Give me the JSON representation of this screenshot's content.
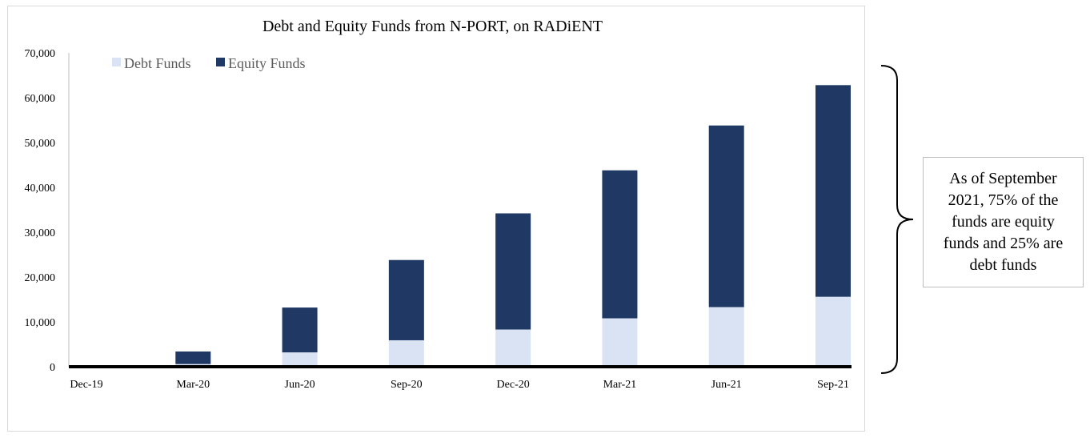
{
  "chart_data": {
    "type": "bar",
    "stacked": true,
    "title": "Debt and Equity Funds from N-PORT, on RADiENT",
    "categories": [
      "Dec-19",
      "Mar-20",
      "Jun-20",
      "Sep-20",
      "Dec-20",
      "Mar-21",
      "Jun-21",
      "Sep-21"
    ],
    "series": [
      {
        "name": "Debt Funds",
        "color": "#dae3f3",
        "values": [
          0,
          600,
          3200,
          5900,
          8300,
          10800,
          13300,
          15600
        ]
      },
      {
        "name": "Equity Funds",
        "color": "#1f3864",
        "values": [
          0,
          2800,
          10000,
          17900,
          25900,
          33000,
          40500,
          47200
        ]
      }
    ],
    "ylim": [
      0,
      70000
    ],
    "yticks": [
      "0",
      "10,000",
      "20,000",
      "30,000",
      "40,000",
      "50,000",
      "60,000",
      "70,000"
    ],
    "xlabel": "",
    "ylabel": "",
    "legend_position": "top-left",
    "grid": false,
    "annotation": {
      "text_lines": [
        "As of September",
        "2021, 75% of the",
        "funds are equity",
        "funds and 25% are",
        "debt funds"
      ]
    }
  }
}
